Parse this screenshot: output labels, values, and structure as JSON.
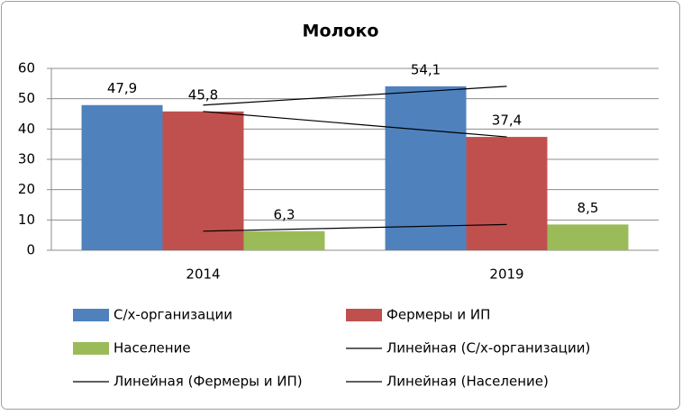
{
  "chart_data": {
    "type": "bar",
    "title": "Молоко",
    "categories": [
      "2014",
      "2019"
    ],
    "series": [
      {
        "name": "С/х-организации",
        "color": "#4f81bd",
        "values": [
          47.9,
          54.1
        ],
        "value_labels": [
          "47,9",
          "54,1"
        ],
        "trendline": "Линейная (С/х-организации)"
      },
      {
        "name": "Фермеры и ИП",
        "color": "#c0504d",
        "values": [
          45.8,
          37.4
        ],
        "value_labels": [
          "45,8",
          "37,4"
        ],
        "trendline": "Линейная (Фермеры и ИП)"
      },
      {
        "name": "Население",
        "color": "#9bbb59",
        "values": [
          6.3,
          8.5
        ],
        "value_labels": [
          "6,3",
          "8,5"
        ],
        "trendline": "Линейная (Население)"
      }
    ],
    "ylim": [
      0,
      60
    ],
    "yticks": [
      0,
      10,
      20,
      30,
      40,
      50,
      60
    ],
    "grid": true,
    "trendline_color": "#000000"
  }
}
